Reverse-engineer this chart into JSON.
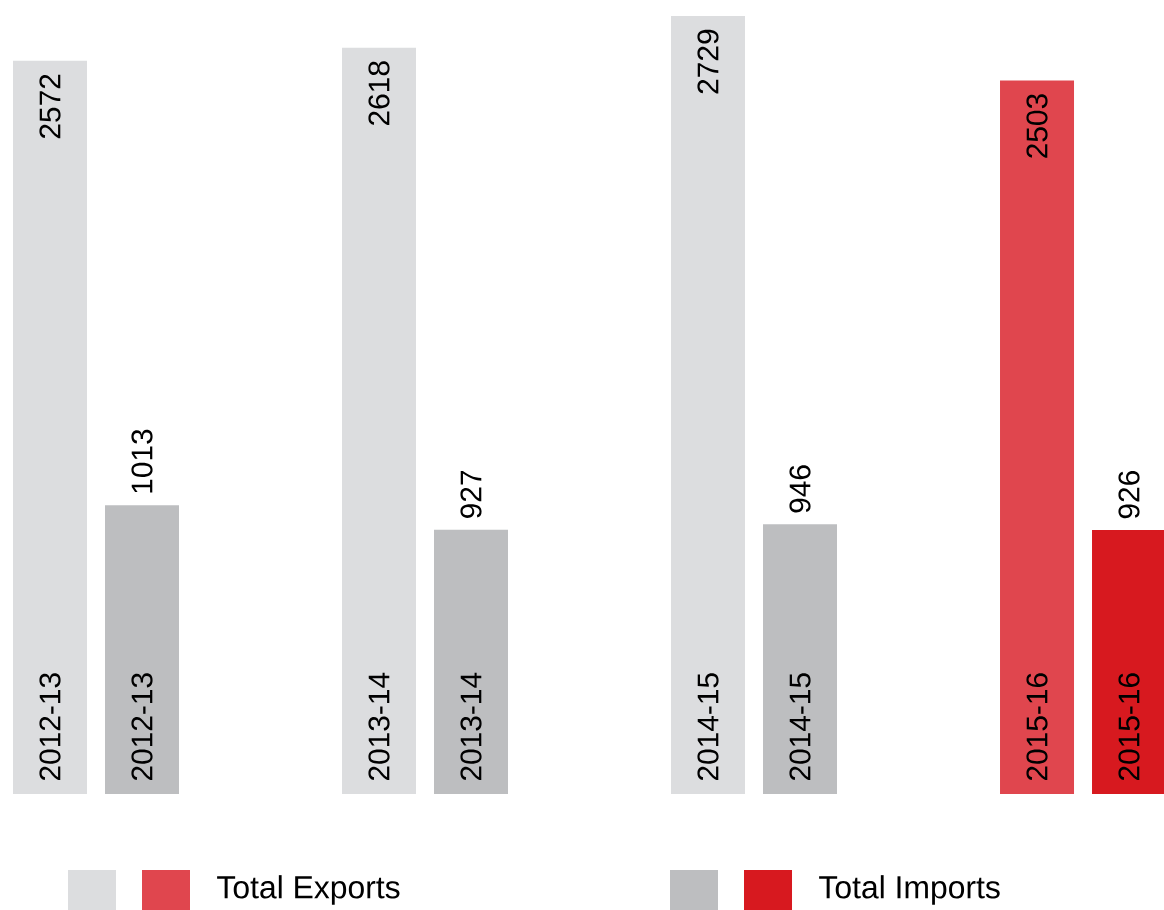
{
  "chart_data": {
    "type": "bar",
    "categories": [
      "2012-13",
      "2013-14",
      "2014-15",
      "2015-16"
    ],
    "series": [
      {
        "name": "Total Exports",
        "colors": [
          "#dcdddf",
          "#dcdddf",
          "#dcdddf",
          "#e0464e"
        ],
        "values": [
          2572,
          2618,
          2729,
          2503
        ]
      },
      {
        "name": "Total Imports",
        "colors": [
          "#bdbec0",
          "#bdbec0",
          "#bdbec0",
          "#d7191f"
        ],
        "values": [
          1013,
          927,
          946,
          926
        ]
      }
    ],
    "data_labels": true,
    "legend": "bottom"
  }
}
